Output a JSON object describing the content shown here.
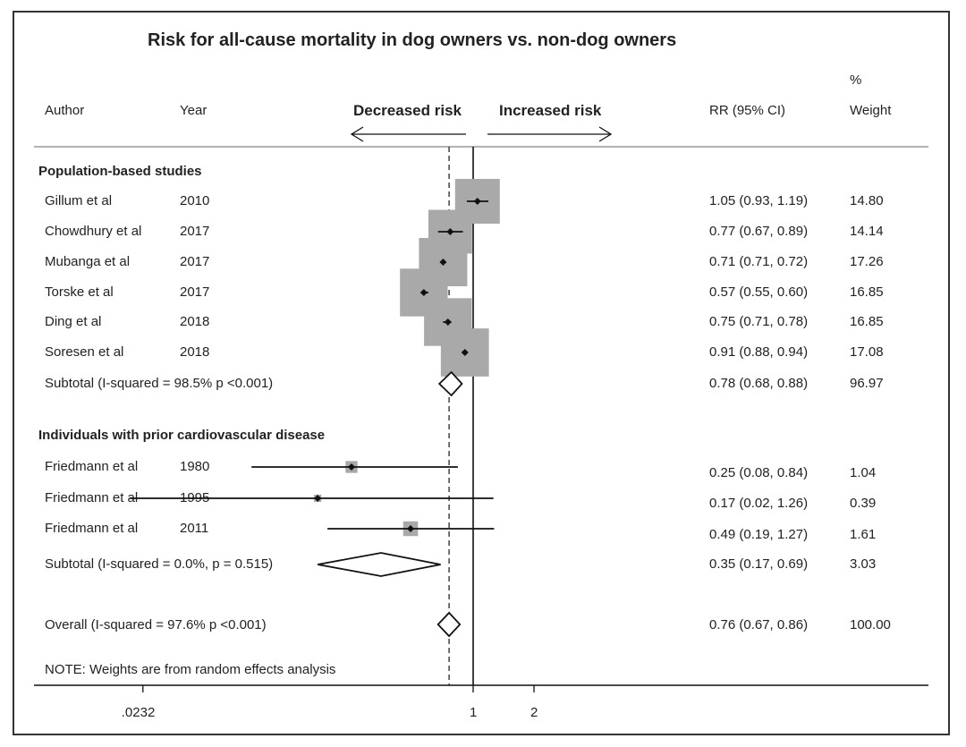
{
  "chart_data": {
    "type": "forest",
    "title": "Risk for all-cause mortality in dog owners  vs. non-dog owners",
    "header": {
      "author": "Author",
      "year": "Year",
      "decreased": "Decreased risk",
      "increased": "Increased risk",
      "rr": "RR (95% CI)",
      "weight_pct": "%",
      "weight": "Weight"
    },
    "groups": [
      {
        "name": "Population-based studies",
        "studies": [
          {
            "author": "Gillum et al",
            "year": "2010",
            "rr": 1.05,
            "lo": 0.93,
            "hi": 1.19,
            "rr_text": "1.05 (0.93, 1.19)",
            "weight": "14.80"
          },
          {
            "author": "Chowdhury et al",
            "year": "2017",
            "rr": 0.77,
            "lo": 0.67,
            "hi": 0.89,
            "rr_text": "0.77 (0.67, 0.89)",
            "weight": "14.14"
          },
          {
            "author": "Mubanga et al",
            "year": "2017",
            "rr": 0.71,
            "lo": 0.71,
            "hi": 0.72,
            "rr_text": "0.71 (0.71, 0.72)",
            "weight": "17.26"
          },
          {
            "author": "Torske et al",
            "year": "2017",
            "rr": 0.57,
            "lo": 0.55,
            "hi": 0.6,
            "rr_text": "0.57 (0.55, 0.60)",
            "weight": "16.85"
          },
          {
            "author": "Ding et al",
            "year": "2018",
            "rr": 0.75,
            "lo": 0.71,
            "hi": 0.78,
            "rr_text": "0.75 (0.71, 0.78)",
            "weight": "16.85"
          },
          {
            "author": "Soresen et al",
            "year": "2018",
            "rr": 0.91,
            "lo": 0.88,
            "hi": 0.94,
            "rr_text": "0.91 (0.88, 0.94)",
            "weight": "17.08"
          }
        ],
        "subtotal": {
          "label": "Subtotal  (I-squared = 98.5%   p <0.001)",
          "rr": 0.78,
          "lo": 0.68,
          "hi": 0.88,
          "rr_text": "0.78 (0.68, 0.88)",
          "weight": "96.97"
        }
      },
      {
        "name": "Individuals with prior cardiovascular disease",
        "studies": [
          {
            "author": "Friedmann et al",
            "year": "1980",
            "rr": 0.25,
            "lo": 0.08,
            "hi": 0.84,
            "rr_text": "0.25 (0.08, 0.84)",
            "weight": "1.04"
          },
          {
            "author": "Friedmann et al",
            "year": "1995",
            "rr": 0.17,
            "lo": 0.02,
            "hi": 1.26,
            "rr_text": "0.17 (0.02, 1.26)",
            "weight": "0.39"
          },
          {
            "author": "Friedmann et al",
            "year": "2011",
            "rr": 0.49,
            "lo": 0.19,
            "hi": 1.27,
            "rr_text": "0.49 (0.19, 1.27)",
            "weight": "1.61"
          }
        ],
        "subtotal": {
          "label": "Subtotal  (I-squared = 0.0%, p = 0.515)",
          "rr": 0.35,
          "lo": 0.17,
          "hi": 0.69,
          "rr_text": "0.35 (0.17, 0.69)",
          "weight": "3.03"
        }
      }
    ],
    "overall": {
      "label": "Overall  (I-squared = 97.6%   p <0.001)",
      "rr": 0.76,
      "lo": 0.67,
      "hi": 0.86,
      "rr_text": "0.76 (0.67, 0.86)",
      "weight": "100.00"
    },
    "note": "NOTE: Weights are from random effects analysis",
    "x_ticks": [
      ".0232",
      "1",
      "2"
    ],
    "x_scale": "log",
    "colors": {
      "box": "#a9a9a9",
      "line": "#111111"
    }
  }
}
